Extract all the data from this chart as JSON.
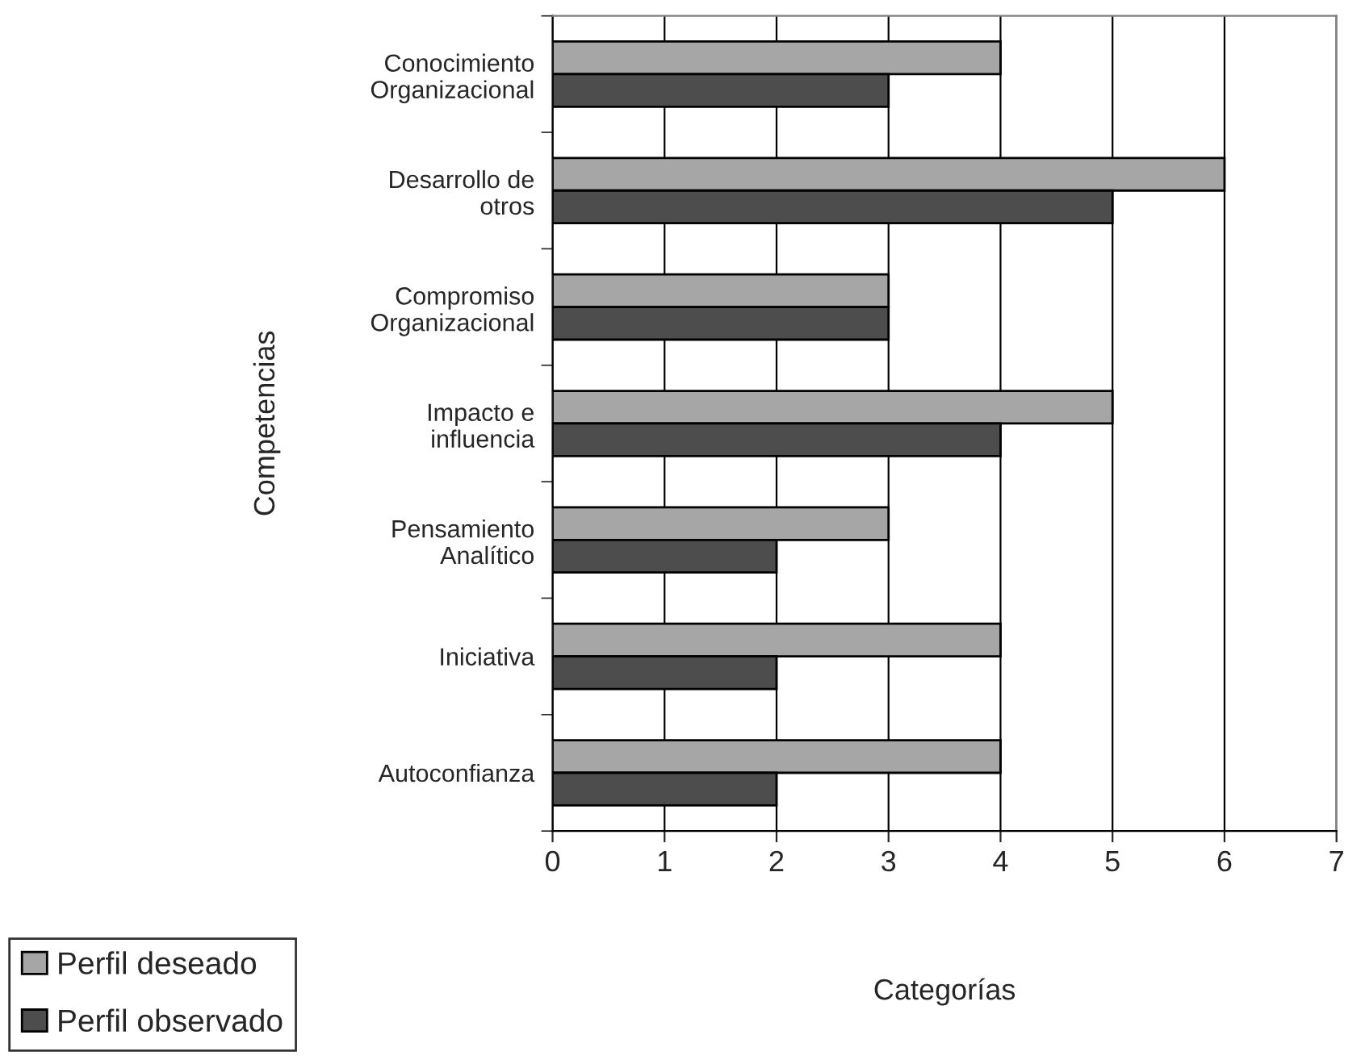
{
  "chart_data": {
    "type": "bar",
    "orientation": "horizontal",
    "categories": [
      "Conocimiento\nOrganizacional",
      "Desarrollo de\notros",
      "Compromiso\nOrganizacional",
      "Impacto e\ninfluencia",
      "Pensamiento\nAnalítico",
      "Iniciativa",
      "Autoconfianza"
    ],
    "series": [
      {
        "name": "Perfil deseado",
        "color": "#a6a6a6",
        "values": [
          4,
          6,
          3,
          5,
          3,
          4,
          4
        ]
      },
      {
        "name": "Perfil observado",
        "color": "#4d4d4d",
        "values": [
          3,
          5,
          3,
          4,
          2,
          2,
          2
        ]
      }
    ],
    "xlim": [
      0,
      7
    ],
    "xticks": [
      0,
      1,
      2,
      3,
      4,
      5,
      6,
      7
    ],
    "xlabel": "Categorías",
    "ylabel": "Competencias",
    "grid": "x",
    "legend": "bottom left"
  }
}
